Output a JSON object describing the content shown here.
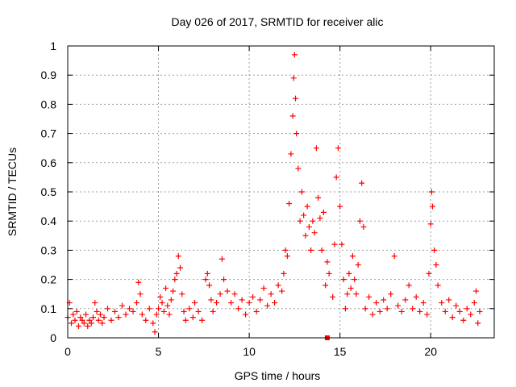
{
  "chart_data": {
    "type": "scatter",
    "title": "Day 026 of 2017, SRMTID for receiver alic",
    "xlabel": "GPS time / hours",
    "ylabel": "SRMTID / TECUs",
    "xlim": [
      0,
      23.5
    ],
    "ylim": [
      0,
      1
    ],
    "x_ticks": [
      0,
      5,
      10,
      15,
      20
    ],
    "x_tick_labels": [
      "0",
      "5",
      "10",
      "15",
      "20"
    ],
    "y_ticks": [
      0,
      0.1,
      0.2,
      0.3,
      0.4,
      0.5,
      0.6,
      0.7,
      0.8,
      0.9,
      1
    ],
    "y_tick_labels": [
      "0",
      "0.1",
      "0.2",
      "0.3",
      "0.4",
      "0.5",
      "0.6",
      "0.7",
      "0.8",
      "0.9",
      "1"
    ],
    "grid": true,
    "marker": "plus",
    "color": "#ff0000",
    "series": [
      {
        "name": "SRMTID",
        "points": [
          [
            0.0,
            0.07
          ],
          [
            0.1,
            0.12
          ],
          [
            0.2,
            0.05
          ],
          [
            0.3,
            0.08
          ],
          [
            0.4,
            0.06
          ],
          [
            0.5,
            0.09
          ],
          [
            0.6,
            0.04
          ],
          [
            0.7,
            0.07
          ],
          [
            0.8,
            0.06
          ],
          [
            0.9,
            0.05
          ],
          [
            1.0,
            0.08
          ],
          [
            1.1,
            0.04
          ],
          [
            1.2,
            0.06
          ],
          [
            1.3,
            0.05
          ],
          [
            1.4,
            0.07
          ],
          [
            1.5,
            0.12
          ],
          [
            1.6,
            0.09
          ],
          [
            1.7,
            0.06
          ],
          [
            1.8,
            0.08
          ],
          [
            1.9,
            0.05
          ],
          [
            2.0,
            0.07
          ],
          [
            2.2,
            0.1
          ],
          [
            2.4,
            0.06
          ],
          [
            2.6,
            0.09
          ],
          [
            2.8,
            0.07
          ],
          [
            3.0,
            0.11
          ],
          [
            3.2,
            0.08
          ],
          [
            3.4,
            0.1
          ],
          [
            3.6,
            0.09
          ],
          [
            3.8,
            0.12
          ],
          [
            3.9,
            0.19
          ],
          [
            4.0,
            0.15
          ],
          [
            4.1,
            0.08
          ],
          [
            4.3,
            0.06
          ],
          [
            4.5,
            0.1
          ],
          [
            4.7,
            0.05
          ],
          [
            4.8,
            0.02
          ],
          [
            4.9,
            0.08
          ],
          [
            5.0,
            0.1
          ],
          [
            5.1,
            0.14
          ],
          [
            5.2,
            0.12
          ],
          [
            5.3,
            0.09
          ],
          [
            5.4,
            0.17
          ],
          [
            5.5,
            0.11
          ],
          [
            5.6,
            0.08
          ],
          [
            5.7,
            0.13
          ],
          [
            5.8,
            0.16
          ],
          [
            5.9,
            0.2
          ],
          [
            6.0,
            0.22
          ],
          [
            6.1,
            0.28
          ],
          [
            6.2,
            0.24
          ],
          [
            6.3,
            0.15
          ],
          [
            6.4,
            0.09
          ],
          [
            6.5,
            0.06
          ],
          [
            6.7,
            0.1
          ],
          [
            6.9,
            0.07
          ],
          [
            7.0,
            0.12
          ],
          [
            7.2,
            0.09
          ],
          [
            7.4,
            0.06
          ],
          [
            7.6,
            0.2
          ],
          [
            7.7,
            0.22
          ],
          [
            7.8,
            0.18
          ],
          [
            7.9,
            0.13
          ],
          [
            8.0,
            0.09
          ],
          [
            8.2,
            0.12
          ],
          [
            8.4,
            0.15
          ],
          [
            8.5,
            0.27
          ],
          [
            8.6,
            0.2
          ],
          [
            8.8,
            0.16
          ],
          [
            9.0,
            0.12
          ],
          [
            9.2,
            0.15
          ],
          [
            9.4,
            0.1
          ],
          [
            9.6,
            0.13
          ],
          [
            9.8,
            0.08
          ],
          [
            10.0,
            0.12
          ],
          [
            10.2,
            0.14
          ],
          [
            10.4,
            0.09
          ],
          [
            10.6,
            0.13
          ],
          [
            10.8,
            0.17
          ],
          [
            11.0,
            0.11
          ],
          [
            11.2,
            0.15
          ],
          [
            11.4,
            0.12
          ],
          [
            11.6,
            0.18
          ],
          [
            11.8,
            0.16
          ],
          [
            11.9,
            0.22
          ],
          [
            12.0,
            0.3
          ],
          [
            12.1,
            0.28
          ],
          [
            12.2,
            0.46
          ],
          [
            12.3,
            0.63
          ],
          [
            12.4,
            0.76
          ],
          [
            12.45,
            0.89
          ],
          [
            12.5,
            0.97
          ],
          [
            12.55,
            0.82
          ],
          [
            12.6,
            0.7
          ],
          [
            12.7,
            0.58
          ],
          [
            12.8,
            0.4
          ],
          [
            12.9,
            0.5
          ],
          [
            13.0,
            0.42
          ],
          [
            13.1,
            0.35
          ],
          [
            13.2,
            0.45
          ],
          [
            13.3,
            0.38
          ],
          [
            13.4,
            0.3
          ],
          [
            13.5,
            0.4
          ],
          [
            13.6,
            0.36
          ],
          [
            13.7,
            0.65
          ],
          [
            13.8,
            0.48
          ],
          [
            13.9,
            0.41
          ],
          [
            14.0,
            0.3
          ],
          [
            14.1,
            0.43
          ],
          [
            14.2,
            0.18
          ],
          [
            14.3,
            0.26
          ],
          [
            14.4,
            0.22
          ],
          [
            14.6,
            0.14
          ],
          [
            14.7,
            0.32
          ],
          [
            14.8,
            0.55
          ],
          [
            14.9,
            0.65
          ],
          [
            15.0,
            0.45
          ],
          [
            15.1,
            0.32
          ],
          [
            15.2,
            0.2
          ],
          [
            15.3,
            0.1
          ],
          [
            15.4,
            0.15
          ],
          [
            15.5,
            0.22
          ],
          [
            15.6,
            0.17
          ],
          [
            15.7,
            0.28
          ],
          [
            15.8,
            0.2
          ],
          [
            15.9,
            0.15
          ],
          [
            16.0,
            0.25
          ],
          [
            16.1,
            0.4
          ],
          [
            16.2,
            0.53
          ],
          [
            16.3,
            0.38
          ],
          [
            16.4,
            0.1
          ],
          [
            16.6,
            0.14
          ],
          [
            16.8,
            0.08
          ],
          [
            17.0,
            0.12
          ],
          [
            17.2,
            0.09
          ],
          [
            17.4,
            0.13
          ],
          [
            17.6,
            0.1
          ],
          [
            17.8,
            0.15
          ],
          [
            18.0,
            0.28
          ],
          [
            18.2,
            0.11
          ],
          [
            18.4,
            0.09
          ],
          [
            18.6,
            0.13
          ],
          [
            18.8,
            0.18
          ],
          [
            19.0,
            0.1
          ],
          [
            19.2,
            0.14
          ],
          [
            19.4,
            0.09
          ],
          [
            19.6,
            0.12
          ],
          [
            19.8,
            0.08
          ],
          [
            19.9,
            0.22
          ],
          [
            20.0,
            0.39
          ],
          [
            20.05,
            0.5
          ],
          [
            20.1,
            0.45
          ],
          [
            20.2,
            0.3
          ],
          [
            20.3,
            0.25
          ],
          [
            20.4,
            0.18
          ],
          [
            20.6,
            0.12
          ],
          [
            20.8,
            0.09
          ],
          [
            21.0,
            0.13
          ],
          [
            21.2,
            0.07
          ],
          [
            21.4,
            0.11
          ],
          [
            21.6,
            0.09
          ],
          [
            21.8,
            0.06
          ],
          [
            22.0,
            0.1
          ],
          [
            22.2,
            0.08
          ],
          [
            22.4,
            0.12
          ],
          [
            22.5,
            0.16
          ],
          [
            22.6,
            0.05
          ],
          [
            22.7,
            0.09
          ]
        ]
      }
    ],
    "special_marker": {
      "x": 14.3,
      "y": 0.0,
      "shape": "square"
    }
  }
}
